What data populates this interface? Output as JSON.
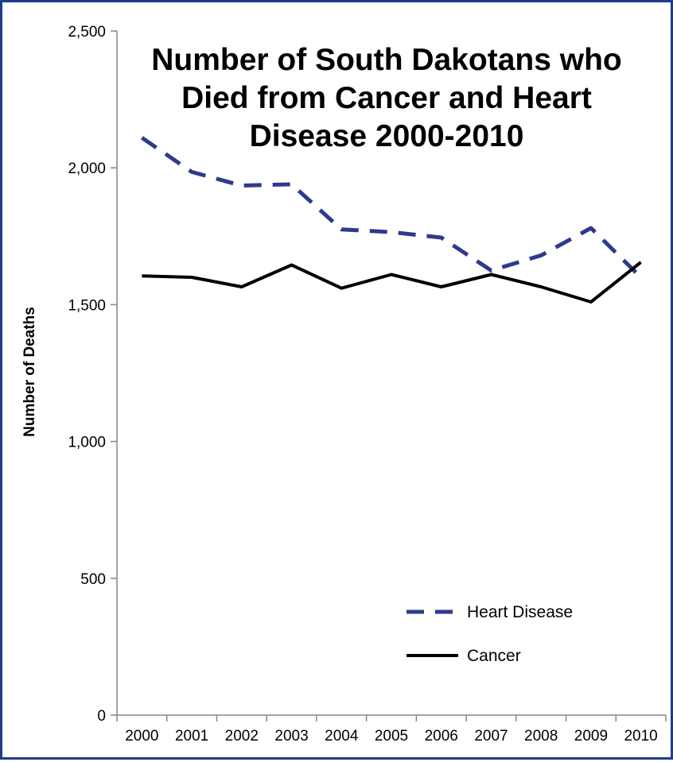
{
  "chart_data": {
    "type": "line",
    "title_lines": [
      "Number of South Dakotans who",
      "Died from Cancer and Heart",
      "Disease 2000-2010"
    ],
    "xlabel": "",
    "ylabel": "Number of Deaths",
    "ylim": [
      0,
      2500
    ],
    "yticks": [
      0,
      500,
      1000,
      1500,
      2000,
      2500
    ],
    "ytick_labels": [
      "0",
      "500",
      "1,000",
      "1,500",
      "2,000",
      "2,500"
    ],
    "categories": [
      "2000",
      "2001",
      "2002",
      "2003",
      "2004",
      "2005",
      "2006",
      "2007",
      "2008",
      "2009",
      "2010"
    ],
    "grid": false,
    "legend_position": "bottom-right",
    "series": [
      {
        "name": "Heart Disease",
        "color": "#2e3a8c",
        "line_style": "dashed",
        "values": [
          2110,
          1985,
          1935,
          1940,
          1775,
          1765,
          1745,
          1625,
          1680,
          1780,
          1600
        ]
      },
      {
        "name": "Cancer",
        "color": "#000000",
        "line_style": "solid",
        "values": [
          1605,
          1600,
          1565,
          1645,
          1560,
          1610,
          1565,
          1610,
          1565,
          1510,
          1655
        ]
      }
    ]
  }
}
